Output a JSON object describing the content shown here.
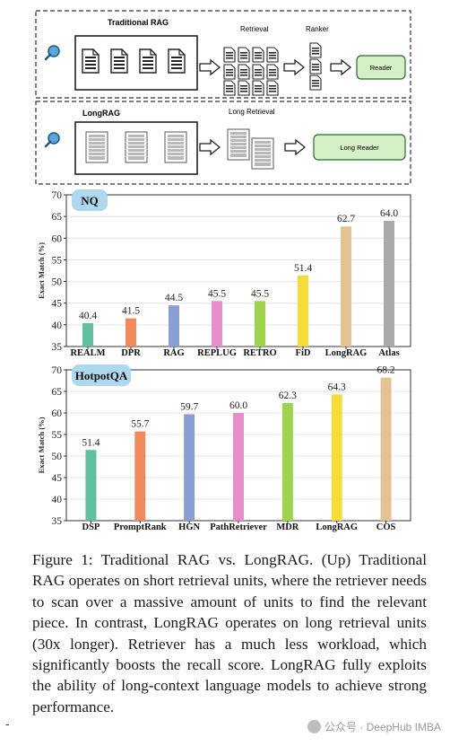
{
  "diagram": {
    "trad_title": "Traditional RAG",
    "retrieval_label": "Retrieval",
    "ranker_label": "Ranker",
    "reader_label": "Reader",
    "long_title": "LongRAG",
    "long_retrieval_label": "Long Retrieval",
    "long_reader_label": "Long Reader"
  },
  "chart_data": [
    {
      "type": "bar",
      "title": "NQ",
      "ylabel": "Exact Match (%)",
      "ylim": [
        35,
        70
      ],
      "yticks": [
        35,
        40,
        45,
        50,
        55,
        60,
        65,
        70
      ],
      "categories": [
        "REALM",
        "DPR",
        "RAG",
        "REPLUG",
        "RETRO",
        "FiD",
        "LongRAG",
        "Atlas"
      ],
      "values": [
        40.4,
        41.5,
        44.5,
        45.5,
        45.5,
        51.4,
        62.7,
        64.0
      ],
      "value_labels": [
        "40.4",
        "41.5",
        "44.5",
        "45.5",
        "45.5",
        "51.4",
        "62.7",
        "64.0"
      ],
      "colors": [
        "#5fbf9f",
        "#f08a5d",
        "#8a9ed4",
        "#e58fcd",
        "#9ed34c",
        "#f6dc3a",
        "#e3c393",
        "#a9a9a9"
      ],
      "grid": true,
      "legend": "none"
    },
    {
      "type": "bar",
      "title": "HotpotQA",
      "ylabel": "Exact Match (%)",
      "ylim": [
        35,
        70
      ],
      "yticks": [
        35,
        40,
        45,
        50,
        55,
        60,
        65,
        70
      ],
      "categories": [
        "DSP",
        "PromptRank",
        "HGN",
        "PathRetriever",
        "MDR",
        "LongRAG",
        "COS"
      ],
      "values": [
        51.4,
        55.7,
        59.7,
        60.0,
        62.3,
        64.3,
        68.2
      ],
      "value_labels": [
        "51.4",
        "55.7",
        "59.7",
        "60.0",
        "62.3",
        "64.3",
        "68.2"
      ],
      "colors": [
        "#5fbf9f",
        "#f08a5d",
        "#8a9ed4",
        "#e58fcd",
        "#9ed34c",
        "#f6dc3a",
        "#e3c393"
      ],
      "grid": true,
      "legend": "none"
    }
  ],
  "caption": "Figure 1: Traditional RAG vs.  LongRAG. (Up) Traditional RAG operates on short retrieval units, where the retriever needs to scan over a massive amount of units to find the relevant piece. In contrast, LongRAG operates on long retrieval units (30x longer). Retriever has a much less workload, which significantly boosts the recall score. LongRAG fully exploits the ability of long-context language models to achieve strong performance.",
  "watermark": "公众号 · DeepHub IMBA",
  "dash_mark": "-"
}
